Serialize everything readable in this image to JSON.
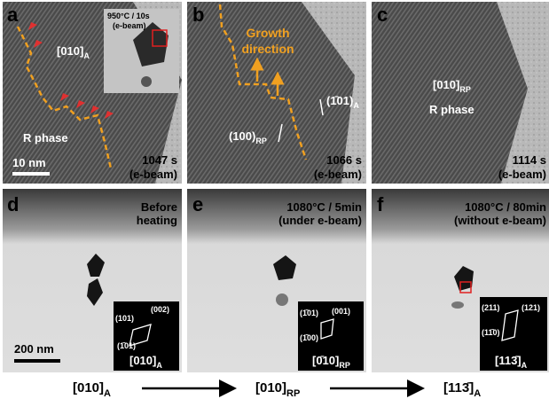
{
  "panels": [
    {
      "label": "a",
      "inset_caption": [
        "950°C / 10s",
        "(e-beam)"
      ],
      "zone": {
        "main": "[010]",
        "sub": "A"
      },
      "phase": "R phase",
      "scale_bar": "10 nm",
      "time": "1047 s",
      "condition": "(e-beam)"
    },
    {
      "label": "b",
      "growth": [
        "Growth",
        "direction"
      ],
      "plane_a": {
        "main": "(1̄01)",
        "sub": "A"
      },
      "plane_rp": {
        "main": "(100)",
        "sub": "RP"
      },
      "time": "1066 s",
      "condition": "(e-beam)"
    },
    {
      "label": "c",
      "zone": {
        "main": "[010]",
        "sub": "RP"
      },
      "phase": "R phase",
      "time": "1114 s",
      "condition": "(e-beam)"
    },
    {
      "label": "d",
      "caption": [
        "Before",
        "heating"
      ],
      "scale_bar": "200 nm",
      "fft": [
        "(101)",
        "(002)",
        "(1̄01)"
      ],
      "zone": {
        "main": "[010]",
        "sub": "A"
      }
    },
    {
      "label": "e",
      "caption": [
        "1080°C / 5min",
        "(under e-beam)"
      ],
      "fft": [
        "(1̄01)",
        "(001)",
        "(1̄00)"
      ],
      "zone": {
        "main": "[0̄10]",
        "sub": "RP"
      }
    },
    {
      "label": "f",
      "caption": [
        "1080°C / 80min",
        "(without e-beam)"
      ],
      "fft": [
        "(211)",
        "(121)",
        "(11̄0)"
      ],
      "zone": {
        "main": "[113̄]",
        "sub": "A"
      }
    }
  ],
  "sequence": [
    {
      "main": "[010]",
      "sub": "A"
    },
    {
      "main": "[010]",
      "sub": "RP"
    },
    {
      "main": "[113̄]",
      "sub": "A"
    }
  ]
}
